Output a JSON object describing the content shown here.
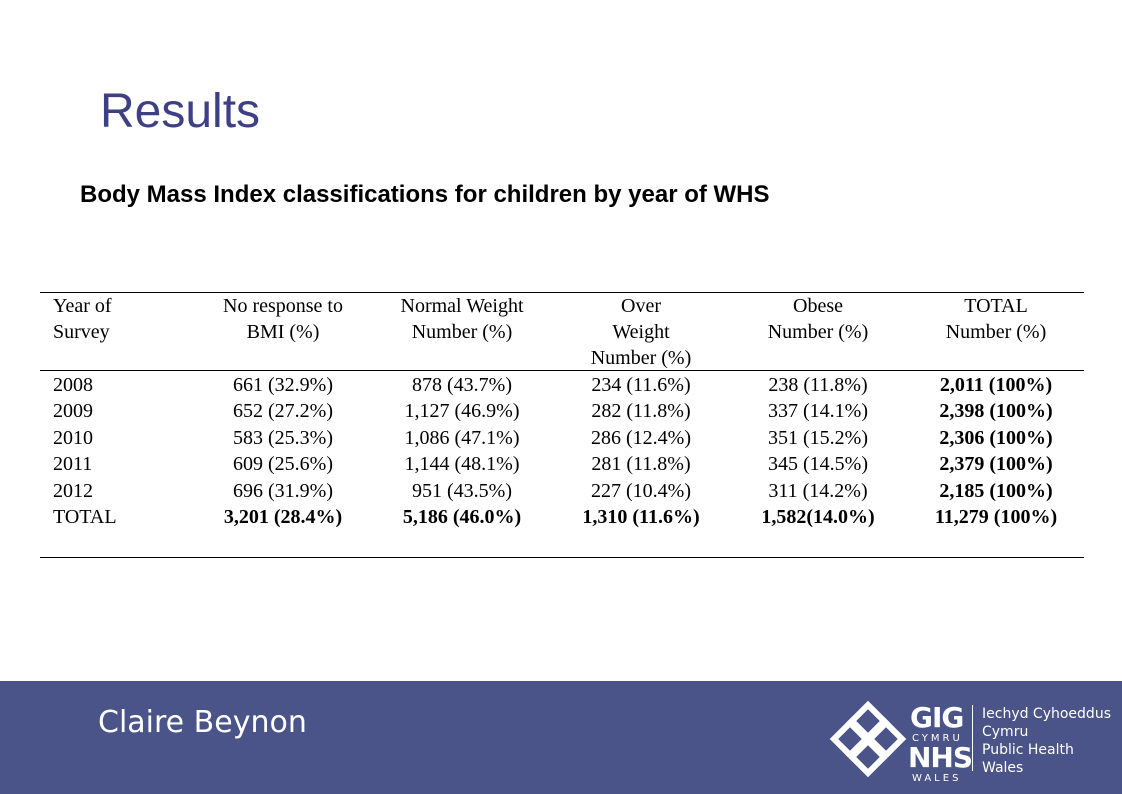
{
  "title": "Results",
  "subtitle": "Body Mass Index classifications for children by year of WHS",
  "table": {
    "header": [
      [
        "Year of",
        "Survey"
      ],
      [
        "No response to",
        "BMI (%)"
      ],
      [
        "Normal Weight",
        "Number (%)"
      ],
      [
        "Over",
        "Weight",
        "Number (%)"
      ],
      [
        "Obese",
        "Number (%)"
      ],
      [
        "TOTAL",
        "Number (%)"
      ]
    ],
    "rows": [
      [
        "2008",
        "661 (32.9%)",
        "878 (43.7%)",
        "234 (11.6%)",
        "238 (11.8%)",
        "2,011 (100%)"
      ],
      [
        "2009",
        "652 (27.2%)",
        "1,127 (46.9%)",
        "282 (11.8%)",
        "337 (14.1%)",
        "2,398 (100%)"
      ],
      [
        "2010",
        "583 (25.3%)",
        "1,086 (47.1%)",
        "286 (12.4%)",
        "351 (15.2%)",
        "2,306 (100%)"
      ],
      [
        "2011",
        "609 (25.6%)",
        "1,144 (48.1%)",
        "281 (11.8%)",
        "345 (14.5%)",
        "2,379 (100%)"
      ],
      [
        "2012",
        "696 (31.9%)",
        "951 (43.5%)",
        "227 (10.4%)",
        "311 (14.2%)",
        "2,185 (100%)"
      ],
      [
        "TOTAL",
        "3,201 (28.4%)",
        "5,186 (46.0%)",
        "1,310 (11.6%)",
        "1,582(14.0%)",
        "11,279 (100%)"
      ]
    ]
  },
  "footer": {
    "author": "Claire Beynon",
    "logo": {
      "gig": "GIG",
      "cymru": "CYMRU",
      "nhs": "NHS",
      "wales": "WALES",
      "welsh": [
        "Iechyd Cyhoeddus",
        "Cymru"
      ],
      "english": [
        "Public Health",
        "Wales"
      ]
    }
  }
}
